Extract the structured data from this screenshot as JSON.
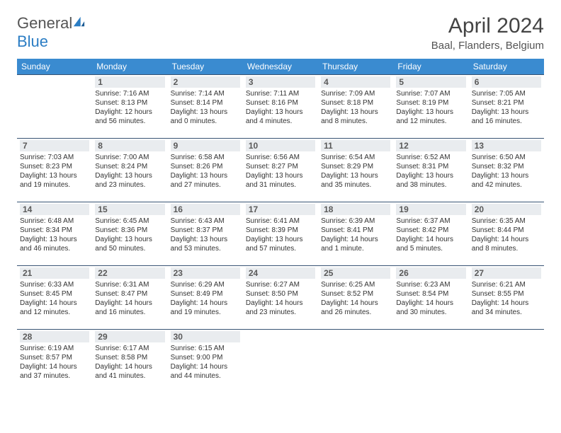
{
  "logo": {
    "part1": "General",
    "part2": "Blue"
  },
  "title": "April 2024",
  "subtitle": "Baal, Flanders, Belgium",
  "colors": {
    "header_bg": "#3a8bd0",
    "header_fg": "#ffffff",
    "daynum_bg": "#e9ecef",
    "daynum_fg": "#5a5a5a",
    "cell_border": "#375373",
    "text": "#333333",
    "logo_blue": "#2b7dc4",
    "logo_gray": "#555555"
  },
  "typography": {
    "title_fontsize": 30,
    "subtitle_fontsize": 15,
    "header_fontsize": 12,
    "daynum_fontsize": 12,
    "cell_fontsize": 10
  },
  "layout": {
    "columns": 7,
    "rows": 5,
    "first_day_column": 1
  },
  "days": [
    "Sunday",
    "Monday",
    "Tuesday",
    "Wednesday",
    "Thursday",
    "Friday",
    "Saturday"
  ],
  "cells": [
    null,
    {
      "n": "1",
      "t": "Sunrise: 7:16 AM\nSunset: 8:13 PM\nDaylight: 12 hours\nand 56 minutes."
    },
    {
      "n": "2",
      "t": "Sunrise: 7:14 AM\nSunset: 8:14 PM\nDaylight: 13 hours\nand 0 minutes."
    },
    {
      "n": "3",
      "t": "Sunrise: 7:11 AM\nSunset: 8:16 PM\nDaylight: 13 hours\nand 4 minutes."
    },
    {
      "n": "4",
      "t": "Sunrise: 7:09 AM\nSunset: 8:18 PM\nDaylight: 13 hours\nand 8 minutes."
    },
    {
      "n": "5",
      "t": "Sunrise: 7:07 AM\nSunset: 8:19 PM\nDaylight: 13 hours\nand 12 minutes."
    },
    {
      "n": "6",
      "t": "Sunrise: 7:05 AM\nSunset: 8:21 PM\nDaylight: 13 hours\nand 16 minutes."
    },
    {
      "n": "7",
      "t": "Sunrise: 7:03 AM\nSunset: 8:23 PM\nDaylight: 13 hours\nand 19 minutes."
    },
    {
      "n": "8",
      "t": "Sunrise: 7:00 AM\nSunset: 8:24 PM\nDaylight: 13 hours\nand 23 minutes."
    },
    {
      "n": "9",
      "t": "Sunrise: 6:58 AM\nSunset: 8:26 PM\nDaylight: 13 hours\nand 27 minutes."
    },
    {
      "n": "10",
      "t": "Sunrise: 6:56 AM\nSunset: 8:27 PM\nDaylight: 13 hours\nand 31 minutes."
    },
    {
      "n": "11",
      "t": "Sunrise: 6:54 AM\nSunset: 8:29 PM\nDaylight: 13 hours\nand 35 minutes."
    },
    {
      "n": "12",
      "t": "Sunrise: 6:52 AM\nSunset: 8:31 PM\nDaylight: 13 hours\nand 38 minutes."
    },
    {
      "n": "13",
      "t": "Sunrise: 6:50 AM\nSunset: 8:32 PM\nDaylight: 13 hours\nand 42 minutes."
    },
    {
      "n": "14",
      "t": "Sunrise: 6:48 AM\nSunset: 8:34 PM\nDaylight: 13 hours\nand 46 minutes."
    },
    {
      "n": "15",
      "t": "Sunrise: 6:45 AM\nSunset: 8:36 PM\nDaylight: 13 hours\nand 50 minutes."
    },
    {
      "n": "16",
      "t": "Sunrise: 6:43 AM\nSunset: 8:37 PM\nDaylight: 13 hours\nand 53 minutes."
    },
    {
      "n": "17",
      "t": "Sunrise: 6:41 AM\nSunset: 8:39 PM\nDaylight: 13 hours\nand 57 minutes."
    },
    {
      "n": "18",
      "t": "Sunrise: 6:39 AM\nSunset: 8:41 PM\nDaylight: 14 hours\nand 1 minute."
    },
    {
      "n": "19",
      "t": "Sunrise: 6:37 AM\nSunset: 8:42 PM\nDaylight: 14 hours\nand 5 minutes."
    },
    {
      "n": "20",
      "t": "Sunrise: 6:35 AM\nSunset: 8:44 PM\nDaylight: 14 hours\nand 8 minutes."
    },
    {
      "n": "21",
      "t": "Sunrise: 6:33 AM\nSunset: 8:45 PM\nDaylight: 14 hours\nand 12 minutes."
    },
    {
      "n": "22",
      "t": "Sunrise: 6:31 AM\nSunset: 8:47 PM\nDaylight: 14 hours\nand 16 minutes."
    },
    {
      "n": "23",
      "t": "Sunrise: 6:29 AM\nSunset: 8:49 PM\nDaylight: 14 hours\nand 19 minutes."
    },
    {
      "n": "24",
      "t": "Sunrise: 6:27 AM\nSunset: 8:50 PM\nDaylight: 14 hours\nand 23 minutes."
    },
    {
      "n": "25",
      "t": "Sunrise: 6:25 AM\nSunset: 8:52 PM\nDaylight: 14 hours\nand 26 minutes."
    },
    {
      "n": "26",
      "t": "Sunrise: 6:23 AM\nSunset: 8:54 PM\nDaylight: 14 hours\nand 30 minutes."
    },
    {
      "n": "27",
      "t": "Sunrise: 6:21 AM\nSunset: 8:55 PM\nDaylight: 14 hours\nand 34 minutes."
    },
    {
      "n": "28",
      "t": "Sunrise: 6:19 AM\nSunset: 8:57 PM\nDaylight: 14 hours\nand 37 minutes."
    },
    {
      "n": "29",
      "t": "Sunrise: 6:17 AM\nSunset: 8:58 PM\nDaylight: 14 hours\nand 41 minutes."
    },
    {
      "n": "30",
      "t": "Sunrise: 6:15 AM\nSunset: 9:00 PM\nDaylight: 14 hours\nand 44 minutes."
    },
    null,
    null,
    null,
    null
  ]
}
